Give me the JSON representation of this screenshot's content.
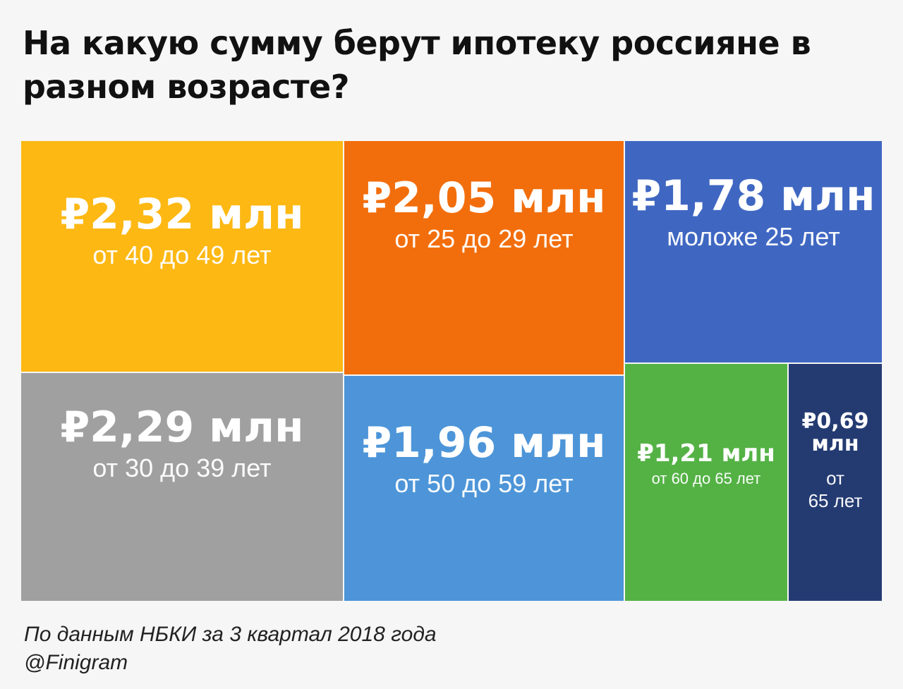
{
  "title": "На какую сумму берут ипотеку россияне в разном возрасте?",
  "source": "По данным НБКИ за 3 квартал 2018 года",
  "handle": "@Finigram",
  "chart_data": {
    "type": "treemap",
    "unit": "млн ₽",
    "items": [
      {
        "category": "от 40 до 49 лет",
        "value": 2.32,
        "value_label": "₽2,32 млн",
        "color": "#fdb813"
      },
      {
        "category": "от 25 до 29 лет",
        "value": 2.05,
        "value_label": "₽2,05 млн",
        "color": "#f26e0c"
      },
      {
        "category": "моложе 25 лет",
        "value": 1.78,
        "value_label": "₽1,78 млн",
        "color": "#3f67c2"
      },
      {
        "category": "от 30 до 39 лет",
        "value": 2.29,
        "value_label": "₽2,29 млн",
        "color": "#a0a0a0"
      },
      {
        "category": "от 50 до 59 лет",
        "value": 1.96,
        "value_label": "₽1,96 млн",
        "color": "#4d95d8"
      },
      {
        "category": "от 60 до 65 лет",
        "value": 1.21,
        "value_label": "₽1,21 млн",
        "color": "#54b245"
      },
      {
        "category": "от\n65 лет",
        "value": 0.69,
        "value_label": "₽0,69\nмлн",
        "color": "#243b72"
      }
    ]
  }
}
